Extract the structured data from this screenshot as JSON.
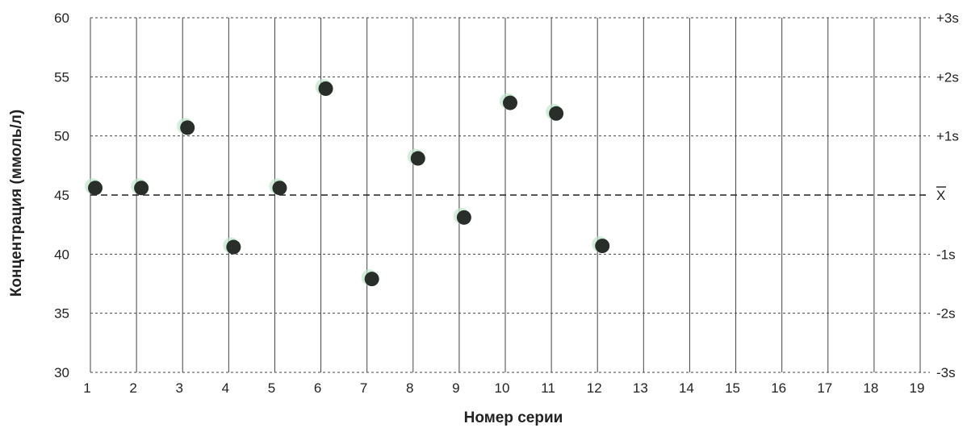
{
  "chart_data": {
    "type": "scatter",
    "title": "",
    "xlabel": "Номер серии",
    "ylabel": "Концентрация (ммоль/л)",
    "x_ticks": [
      1,
      2,
      3,
      4,
      5,
      6,
      7,
      8,
      9,
      10,
      11,
      12,
      13,
      14,
      15,
      16,
      17,
      18,
      19
    ],
    "y_ticks": [
      30,
      35,
      40,
      45,
      50,
      55,
      60
    ],
    "xlim": [
      1,
      19
    ],
    "ylim": [
      30,
      60
    ],
    "grid": true,
    "series": [
      {
        "x": [
          1,
          2,
          3,
          4,
          5,
          6,
          7,
          8,
          9,
          10,
          11,
          12
        ],
        "y": [
          45.6,
          45.6,
          50.7,
          40.6,
          45.6,
          54.0,
          37.9,
          48.1,
          43.1,
          52.8,
          51.9,
          40.7
        ]
      }
    ],
    "mean": 45,
    "sd_lines": [
      {
        "label": "+3s",
        "value": 60
      },
      {
        "label": "+2s",
        "value": 55
      },
      {
        "label": "+1s",
        "value": 50
      },
      {
        "label": "X",
        "value": 45
      },
      {
        "label": "-1s",
        "value": 40
      },
      {
        "label": "-2s",
        "value": 35
      },
      {
        "label": "-3s",
        "value": 30
      }
    ],
    "colors": {
      "point": "#2a2e2b",
      "point_halo": "#bfe7cc",
      "grid": "#444444",
      "mean_line": "#222222",
      "text": "#222222"
    }
  }
}
